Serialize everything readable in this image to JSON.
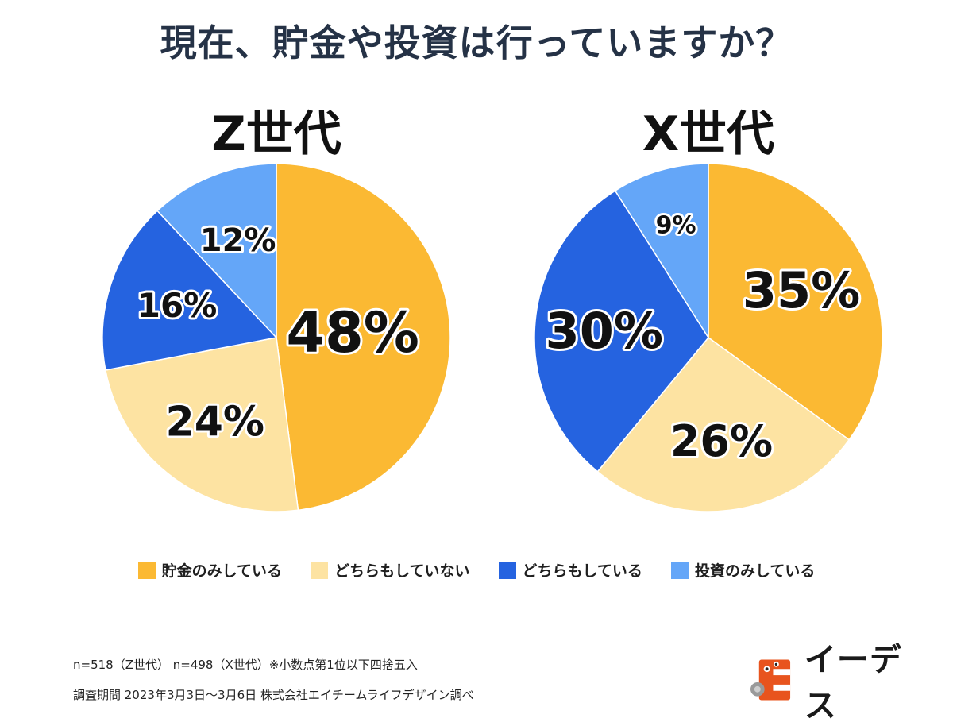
{
  "title": "現在、貯金や投資は行っていますか？",
  "colors": {
    "savings_only": "#FBB933",
    "neither": "#FDE3A2",
    "both": "#2563E0",
    "investment_only": "#64A6F8"
  },
  "chart_data": [
    {
      "type": "pie",
      "title": "Z世代",
      "categories": [
        "貯金のみしている",
        "どちらもしていない",
        "どちらもしている",
        "投資のみしている"
      ],
      "values": [
        48,
        24,
        16,
        12
      ],
      "labels": [
        "48%",
        "24%",
        "16%",
        "12%"
      ],
      "colors": [
        "#FBB933",
        "#FDE3A2",
        "#2563E0",
        "#64A6F8"
      ],
      "label_sizes": [
        70,
        52,
        42,
        40
      ]
    },
    {
      "type": "pie",
      "title": "X世代",
      "categories": [
        "貯金のみしている",
        "どちらもしていない",
        "どちらもしている",
        "投資のみしている"
      ],
      "values": [
        35,
        26,
        30,
        9
      ],
      "labels": [
        "35%",
        "26%",
        "30%",
        "9%"
      ],
      "colors": [
        "#FBB933",
        "#FDE3A2",
        "#2563E0",
        "#64A6F8"
      ],
      "label_sizes": [
        62,
        54,
        62,
        30
      ]
    }
  ],
  "legend": [
    {
      "label": "貯金のみしている",
      "color": "#FBB933"
    },
    {
      "label": "どちらもしていない",
      "color": "#FDE3A2"
    },
    {
      "label": "どちらもしている",
      "color": "#2563E0"
    },
    {
      "label": "投資のみしている",
      "color": "#64A6F8"
    }
  ],
  "footnotes": {
    "line1": "n=518（Z世代） n=498（X世代）※小数点第1位以下四捨五入",
    "line2": "調査期間 2023年3月3日〜3月6日 株式会社エイチームライフデザイン調べ"
  },
  "logo": {
    "text": "イーデス",
    "icon": "ie-des-mascot-icon"
  }
}
